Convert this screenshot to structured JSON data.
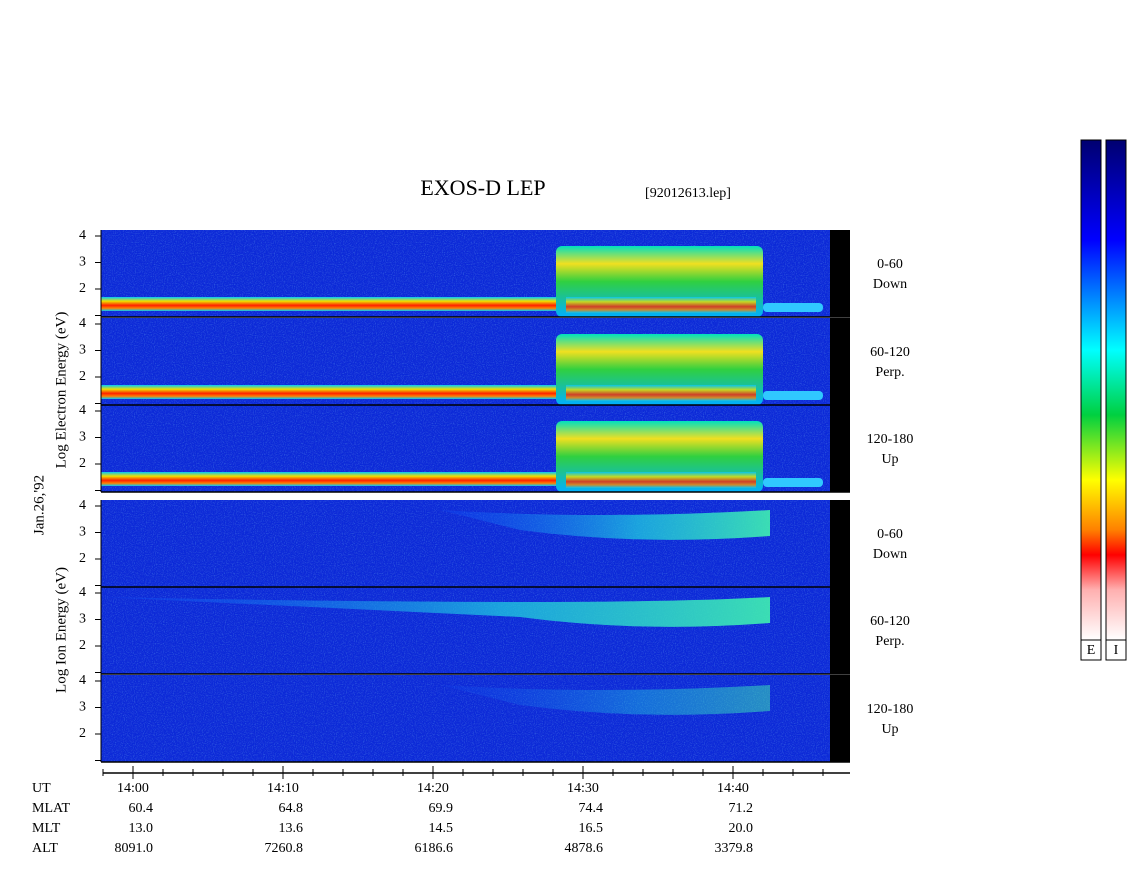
{
  "header": {
    "title": "EXOS-D LEP",
    "file": "[92012613.lep]"
  },
  "date": "Jan.26,'92",
  "electron": {
    "axis_label": "Log Electron Energy (eV)",
    "panels": [
      {
        "range": "0-60",
        "direction": "Down"
      },
      {
        "range": "60-120",
        "direction": "Perp."
      },
      {
        "range": "120-180",
        "direction": "Up"
      }
    ]
  },
  "ion": {
    "axis_label": "Log Ion Energy (eV)",
    "panels": [
      {
        "range": "0-60",
        "direction": "Down"
      },
      {
        "range": "60-120",
        "direction": "Perp."
      },
      {
        "range": "120-180",
        "direction": "Up"
      }
    ]
  },
  "energy_ticks": [
    2,
    3,
    4
  ],
  "time_ticks": [
    "14:00",
    "14:10",
    "14:20",
    "14:30",
    "14:40"
  ],
  "orbit": {
    "rows": [
      {
        "label": "UT"
      },
      {
        "label": "MLAT",
        "values": [
          "60.4",
          "64.8",
          "69.9",
          "74.4",
          "71.2"
        ]
      },
      {
        "label": "MLT",
        "values": [
          "13.0",
          "13.6",
          "14.5",
          "16.5",
          "20.0"
        ]
      },
      {
        "label": "ALT",
        "values": [
          "8091.0",
          "7260.8",
          "6186.6",
          "4878.6",
          "3379.8"
        ]
      }
    ]
  },
  "colorbar": {
    "labels": [
      "E",
      "I"
    ]
  }
}
